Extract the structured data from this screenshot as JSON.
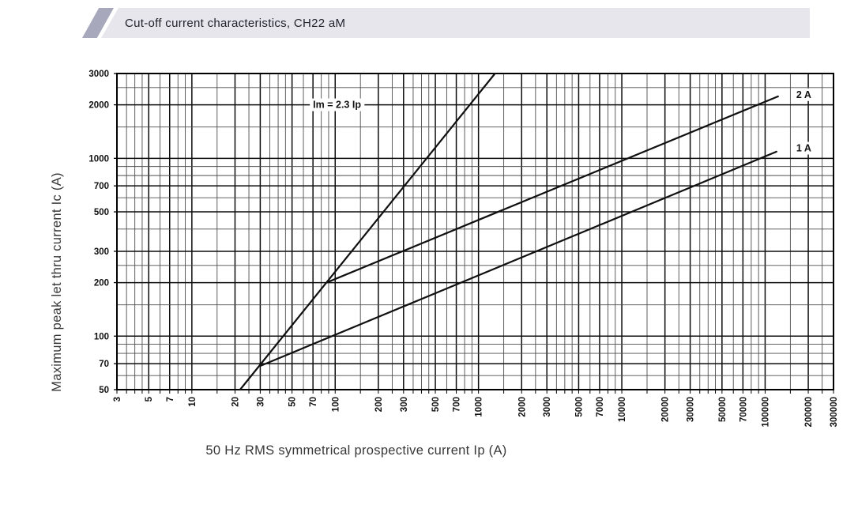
{
  "header": {
    "title": "Cut-off current characteristics, CH22 aM"
  },
  "colors": {
    "brand_stripe": "#a7a8bb",
    "banner_bg": "#e6e6ec",
    "grid_minor": "#4d4d4d",
    "grid_major": "#0d0d0d",
    "curve": "#101010"
  },
  "chart_data": {
    "type": "line",
    "title": "Cut-off current characteristics, CH22 aM",
    "x_axis": {
      "label": "50 Hz RMS symmetrical prospective current Ip (A)",
      "scale": "log",
      "min": 3,
      "max": 300000,
      "ticks": [
        3,
        5,
        7,
        10,
        20,
        30,
        50,
        70,
        100,
        200,
        300,
        500,
        700,
        1000,
        2000,
        3000,
        5000,
        7000,
        10000,
        20000,
        30000,
        50000,
        70000,
        100000,
        200000,
        300000
      ]
    },
    "y_axis": {
      "label": "Maximum peak let thru current Ic (A)",
      "scale": "log",
      "min": 50,
      "max": 3000,
      "ticks": [
        50,
        70,
        100,
        200,
        300,
        500,
        700,
        1000,
        2000,
        3000
      ]
    },
    "grid": true,
    "series": [
      {
        "name": "Im = 2.3 Ip",
        "role": "reference-line",
        "points": [
          [
            21.7,
            50
          ],
          [
            1304,
            3000
          ]
        ],
        "label_at": [
          103,
          2000
        ],
        "label_anchor": "middle"
      },
      {
        "name": "2 A",
        "role": "fuse-rating-curve",
        "points": [
          [
            87,
            200
          ],
          [
            123000,
            2230
          ]
        ],
        "label_at": [
          165000,
          2280
        ],
        "label_anchor": "start"
      },
      {
        "name": "1 A",
        "role": "fuse-rating-curve",
        "points": [
          [
            30,
            68
          ],
          [
            120000,
            1090
          ]
        ],
        "label_at": [
          165000,
          1140
        ],
        "label_anchor": "start"
      }
    ]
  }
}
